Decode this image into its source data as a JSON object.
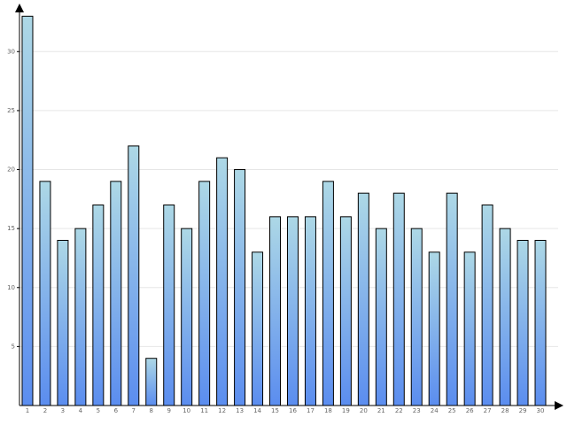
{
  "chart_data": {
    "type": "bar",
    "categories": [
      "1",
      "2",
      "3",
      "4",
      "5",
      "6",
      "7",
      "8",
      "9",
      "10",
      "11",
      "12",
      "13",
      "14",
      "15",
      "16",
      "17",
      "18",
      "19",
      "20",
      "21",
      "22",
      "23",
      "24",
      "25",
      "26",
      "27",
      "28",
      "29",
      "30"
    ],
    "values": [
      33,
      19,
      14,
      15,
      17,
      19,
      22,
      4,
      17,
      15,
      19,
      21,
      20,
      13,
      16,
      16,
      16,
      19,
      16,
      18,
      15,
      18,
      15,
      13,
      18,
      13,
      17,
      15,
      14,
      14
    ],
    "color_top": "#add8e6",
    "color_bottom": "#5b8def",
    "ylim": [
      0,
      34
    ],
    "yticks": [
      5,
      10,
      15,
      20,
      25,
      30
    ],
    "grid": true
  }
}
